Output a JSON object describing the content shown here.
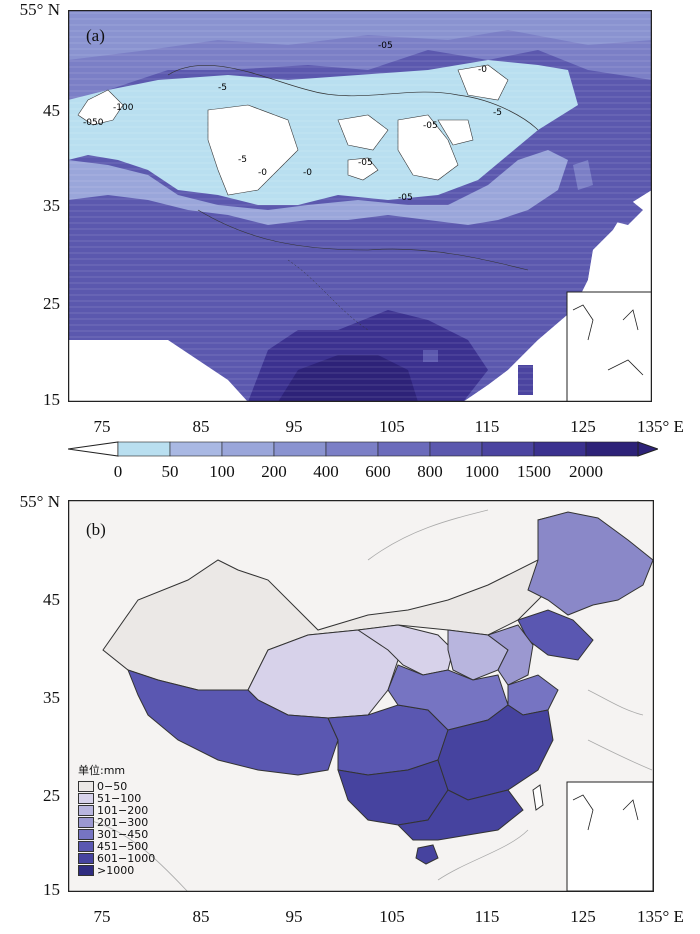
{
  "panel_a": {
    "tag": "(a)",
    "y_ticks": [
      "55° N",
      "45",
      "35",
      "25",
      "15"
    ],
    "x_ticks": [
      "75",
      "85",
      "95",
      "105",
      "115",
      "125",
      "135° E"
    ],
    "contour_labels": [
      "-05",
      "-5",
      "-100",
      "-050",
      "-5",
      "-0",
      "-0",
      "-05",
      "-05",
      "-5",
      "-05",
      "-0"
    ]
  },
  "colorbar": {
    "labels": [
      "0",
      "50",
      "100",
      "200",
      "400",
      "600",
      "800",
      "1000",
      "1500",
      "2000"
    ],
    "colors": [
      "#b9dff0",
      "#a9b8e3",
      "#9aa6da",
      "#8a93d0",
      "#7b7fc6",
      "#6b6bbb",
      "#5b58ae",
      "#4b44a0",
      "#3b318f",
      "#2d2278"
    ]
  },
  "panel_b": {
    "tag": "(b)",
    "y_ticks": [
      "55° N",
      "45",
      "35",
      "25",
      "15"
    ],
    "x_ticks": [
      "75",
      "85",
      "95",
      "105",
      "115",
      "125",
      "135° E"
    ],
    "legend": {
      "title": "单位:mm",
      "items": [
        {
          "label": "0−50",
          "color": "#ebe8e6"
        },
        {
          "label": "51−100",
          "color": "#d7d2ea"
        },
        {
          "label": "101−200",
          "color": "#b8b5de"
        },
        {
          "label": "201−300",
          "color": "#9b98d0"
        },
        {
          "label": "301−450",
          "color": "#7674c2"
        },
        {
          "label": "451−500",
          "color": "#5a57b1"
        },
        {
          "label": "601−1000",
          "color": "#46439f"
        },
        {
          "label": ">1000",
          "color": "#2f2c80"
        }
      ]
    }
  }
}
